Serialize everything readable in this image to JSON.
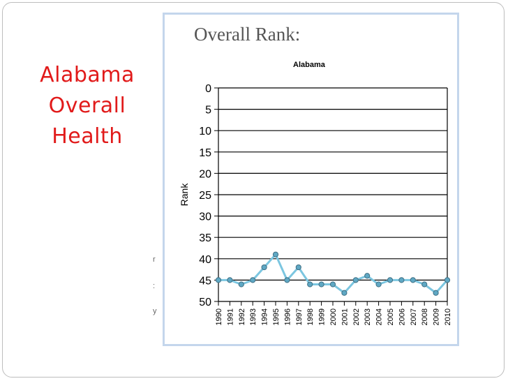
{
  "slide": {
    "title_lines": [
      "Alabama",
      "Overall",
      "Health"
    ],
    "colors": {
      "title": "#e11a1a",
      "frame_border": "#c4d6ec"
    }
  },
  "chart_heading": "Overall Rank:",
  "edge_fragments": [
    "r",
    ":",
    "y"
  ],
  "chart_data": {
    "type": "line",
    "title": "Alabama",
    "ylabel": "Rank",
    "xlabel": "",
    "ylim": [
      0,
      50
    ],
    "y_inverted": true,
    "y_ticks": [
      0,
      5,
      10,
      15,
      20,
      25,
      30,
      35,
      40,
      45,
      50
    ],
    "grid": true,
    "x": [
      "1990",
      "1991",
      "1992",
      "1993",
      "1994",
      "1995",
      "1996",
      "1997",
      "1998",
      "1999",
      "2000",
      "2001",
      "2002",
      "2003",
      "2004",
      "2005",
      "2006",
      "2007",
      "2008",
      "2009",
      "2010"
    ],
    "series": [
      {
        "values": [
          45,
          45,
          46,
          45,
          42,
          39,
          45,
          42,
          46,
          46,
          46,
          48,
          45,
          44,
          46,
          45,
          45,
          45,
          46,
          48,
          45
        ],
        "color": "#7cc6e0",
        "marker_color": "#5fa8c4"
      }
    ]
  }
}
